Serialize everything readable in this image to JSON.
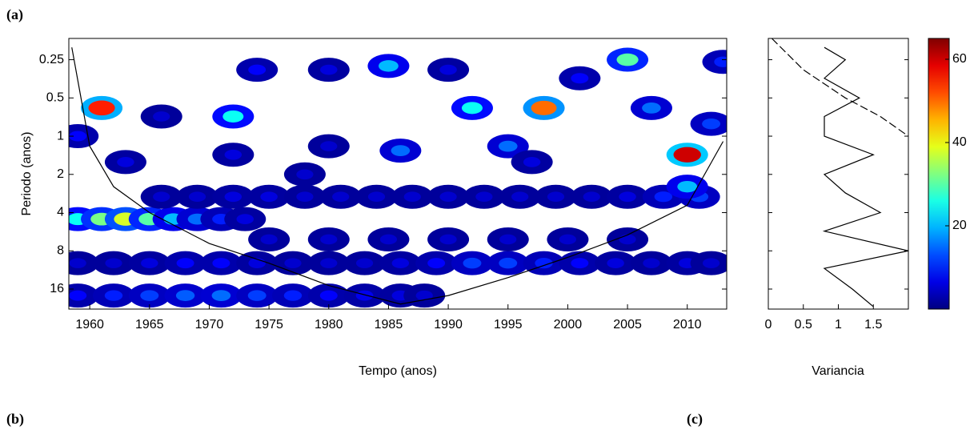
{
  "panel_labels": [
    "(a)",
    "(b)",
    "(c)"
  ],
  "chart_data": [
    {
      "type": "wavelet",
      "xlabel": "Tempo (anos)",
      "ylabel": "Periodo (anos)",
      "xlim": [
        1958.25,
        2013.3
      ],
      "xticks": [
        1960,
        1965,
        1970,
        1975,
        1980,
        1985,
        1990,
        1995,
        2000,
        2005,
        2010
      ],
      "ylim": [
        0.17,
        23
      ],
      "yticks": [
        0.25,
        0.5,
        1,
        2,
        4,
        8,
        16
      ],
      "log_y": true,
      "colormap": "jet",
      "x": [
        1959,
        1962,
        1965,
        1968,
        1971,
        1974,
        1977,
        1980,
        1983,
        1986,
        1989,
        1992,
        1995,
        1998,
        2001,
        2004,
        2007,
        2010,
        2012,
        1959,
        1962,
        1965,
        1968,
        1971,
        1974,
        1977,
        1980,
        1983,
        1986,
        1988,
        1959,
        1961,
        1963,
        1965,
        1967,
        1969,
        1971,
        1973,
        1966,
        1969,
        1972,
        1975,
        1978,
        1981,
        1984,
        1987,
        1990,
        1993,
        1996,
        1999,
        2002,
        2005,
        2008,
        2011,
        1975,
        1980,
        1985,
        1990,
        1995,
        2000,
        2005,
        1961,
        1959,
        1963,
        1972,
        1972,
        1974,
        1980,
        1978,
        1985,
        1986,
        1990,
        1992,
        1995,
        1998,
        1997,
        2001,
        2005,
        2007,
        2010,
        2010,
        2012,
        2013,
        1966,
        1980
      ],
      "period": [
        10,
        10,
        10,
        10,
        10,
        10,
        10,
        10,
        10,
        10,
        10,
        10,
        10,
        10,
        10,
        10,
        10,
        10,
        10,
        18,
        18,
        18,
        18,
        18,
        18,
        18,
        18,
        18,
        18,
        18,
        4.5,
        4.5,
        4.5,
        4.5,
        4.5,
        4.5,
        4.5,
        4.5,
        3,
        3,
        3,
        3,
        3,
        3,
        3,
        3,
        3,
        3,
        3,
        3,
        3,
        3,
        3,
        3,
        6.5,
        6.5,
        6.5,
        6.5,
        6.5,
        6.5,
        6.5,
        0.6,
        1,
        1.6,
        0.7,
        1.4,
        0.3,
        0.3,
        2,
        0.28,
        1.3,
        0.3,
        0.6,
        1.2,
        0.6,
        1.6,
        0.35,
        0.25,
        0.6,
        1.4,
        2.5,
        0.8,
        0.26,
        0.7,
        1.2
      ],
      "power": [
        5,
        5,
        6,
        8,
        8,
        6,
        5,
        5,
        5,
        6,
        8,
        12,
        12,
        10,
        8,
        6,
        5,
        6,
        5,
        8,
        10,
        12,
        14,
        15,
        12,
        10,
        8,
        7,
        6,
        5,
        25,
        32,
        38,
        30,
        20,
        15,
        10,
        6,
        5,
        5,
        6,
        6,
        5,
        5,
        5,
        5,
        5,
        5,
        5,
        5,
        5,
        6,
        10,
        12,
        5,
        5,
        5,
        5,
        5,
        5,
        5,
        55,
        8,
        6,
        25,
        6,
        8,
        6,
        5,
        20,
        15,
        6,
        25,
        15,
        50,
        6,
        8,
        30,
        15,
        60,
        20,
        12,
        10,
        5,
        5
      ],
      "coi": {
        "x": [
          1958.5,
          1960,
          1962,
          1965,
          1970,
          1975,
          1980,
          1986,
          1990,
          1995,
          2000,
          2005,
          2010,
          2013
        ],
        "period": [
          0.2,
          1.2,
          2.5,
          4,
          7,
          10,
          15,
          21,
          18,
          13,
          9,
          6,
          3.5,
          1.1
        ]
      }
    },
    {
      "type": "line",
      "xlabel": "Variancia",
      "xlim": [
        0,
        2
      ],
      "xticks": [
        0,
        0.5,
        1,
        1.5
      ],
      "ylim": [
        0.17,
        23
      ],
      "log_y": true,
      "series": [
        {
          "color": "#000000",
          "dashed": false,
          "values": [
            0.8,
            1.1,
            0.8,
            1.3,
            0.8,
            0.8,
            1.5,
            0.8,
            1.1,
            1.6,
            0.8,
            2,
            0.8,
            1.2,
            1.5
          ],
          "period": [
            0.2,
            0.25,
            0.35,
            0.5,
            0.7,
            1,
            1.4,
            2,
            2.8,
            4,
            5.6,
            8,
            11,
            16,
            22
          ]
        },
        {
          "color": "#000000",
          "dashed": true,
          "values": [
            0.05,
            0.5,
            1.1,
            1.6,
            2
          ],
          "period": [
            0.17,
            0.3,
            0.5,
            0.7,
            1
          ]
        }
      ]
    },
    {
      "type": "colorbar",
      "clim": [
        0,
        65
      ],
      "ticks": [
        20,
        40,
        60
      ],
      "colormap": "jet"
    }
  ]
}
